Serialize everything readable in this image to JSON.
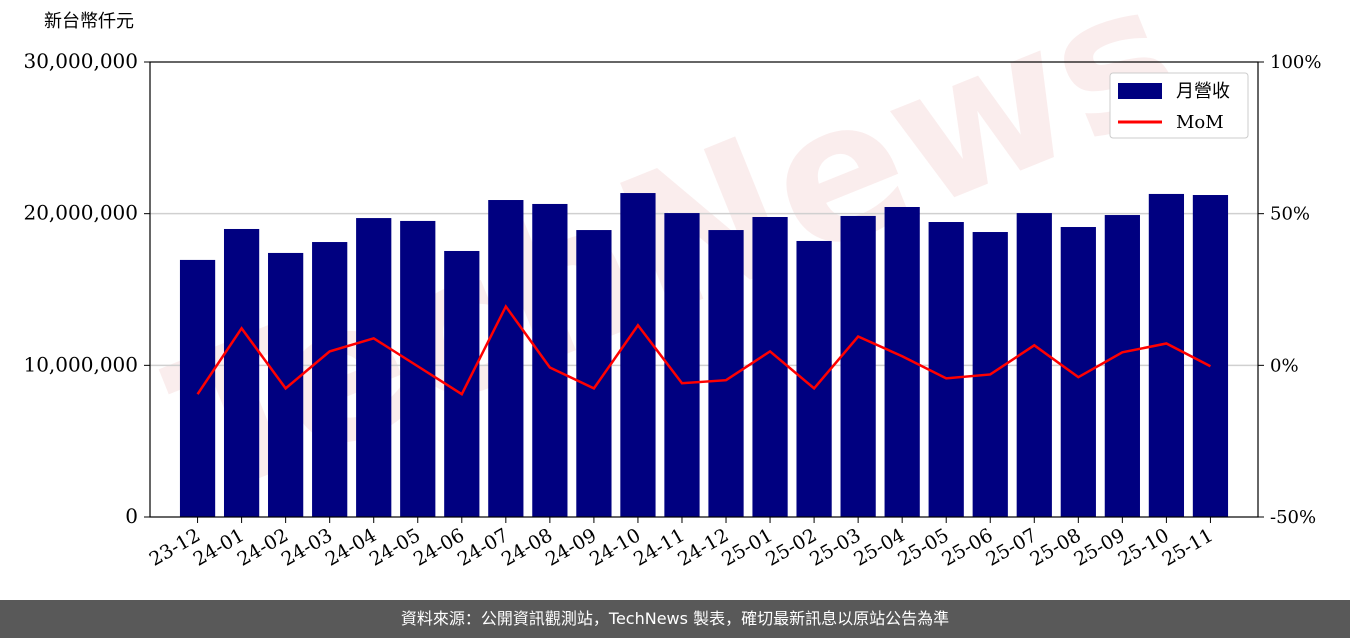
{
  "chart_data": {
    "type": "bar_line",
    "y_label": "新台幣仟元",
    "watermark": "TechNews",
    "categories": [
      "23-12",
      "24-01",
      "24-02",
      "24-03",
      "24-04",
      "24-05",
      "24-06",
      "24-07",
      "24-08",
      "24-09",
      "24-10",
      "24-11",
      "24-12",
      "25-01",
      "25-02",
      "25-03",
      "25-04",
      "25-05",
      "25-06",
      "25-07",
      "25-08",
      "25-09",
      "25-10",
      "25-11"
    ],
    "series": [
      {
        "name": "月營收",
        "color": "#000080",
        "type": "bar",
        "values": [
          16950000,
          18990000,
          17410000,
          18130000,
          19710000,
          19520000,
          17540000,
          20900000,
          20640000,
          18920000,
          21360000,
          20040000,
          18920000,
          19780000,
          18200000,
          19850000,
          20440000,
          19450000,
          18790000,
          20040000,
          19120000,
          19910000,
          21300000,
          21230000
        ]
      },
      {
        "name": "MoM",
        "color": "#ff0000",
        "type": "line",
        "axis": "y2",
        "values": [
          -9.5,
          12.2,
          -7.6,
          4.6,
          8.9,
          -0.3,
          -9.5,
          19.4,
          -0.7,
          -7.6,
          13.2,
          -5.9,
          -4.9,
          4.6,
          -7.6,
          9.5,
          3.0,
          -4.3,
          -3.0,
          6.6,
          -3.9,
          4.3,
          7.2,
          -0.3
        ]
      }
    ],
    "ylim": [
      0,
      30000000
    ],
    "yticks": [
      0,
      {
        "value": 10000000,
        "label": "10,000,000"
      },
      {
        "value": 20000000,
        "label": "20,000,000"
      },
      {
        "value": 30000000,
        "label": "30,000,000"
      }
    ],
    "y2lim": [
      -50,
      100
    ],
    "y2ticks": [
      {
        "value": -50,
        "label": "-50%"
      },
      {
        "value": 0,
        "label": "0%"
      },
      {
        "value": 50,
        "label": "50%"
      },
      {
        "value": 100,
        "label": "100%"
      }
    ],
    "grid": true,
    "legend": "upper right"
  },
  "footer": "資料來源：公開資訊觀測站，TechNews 製表，確切最新訊息以原站公告為準"
}
